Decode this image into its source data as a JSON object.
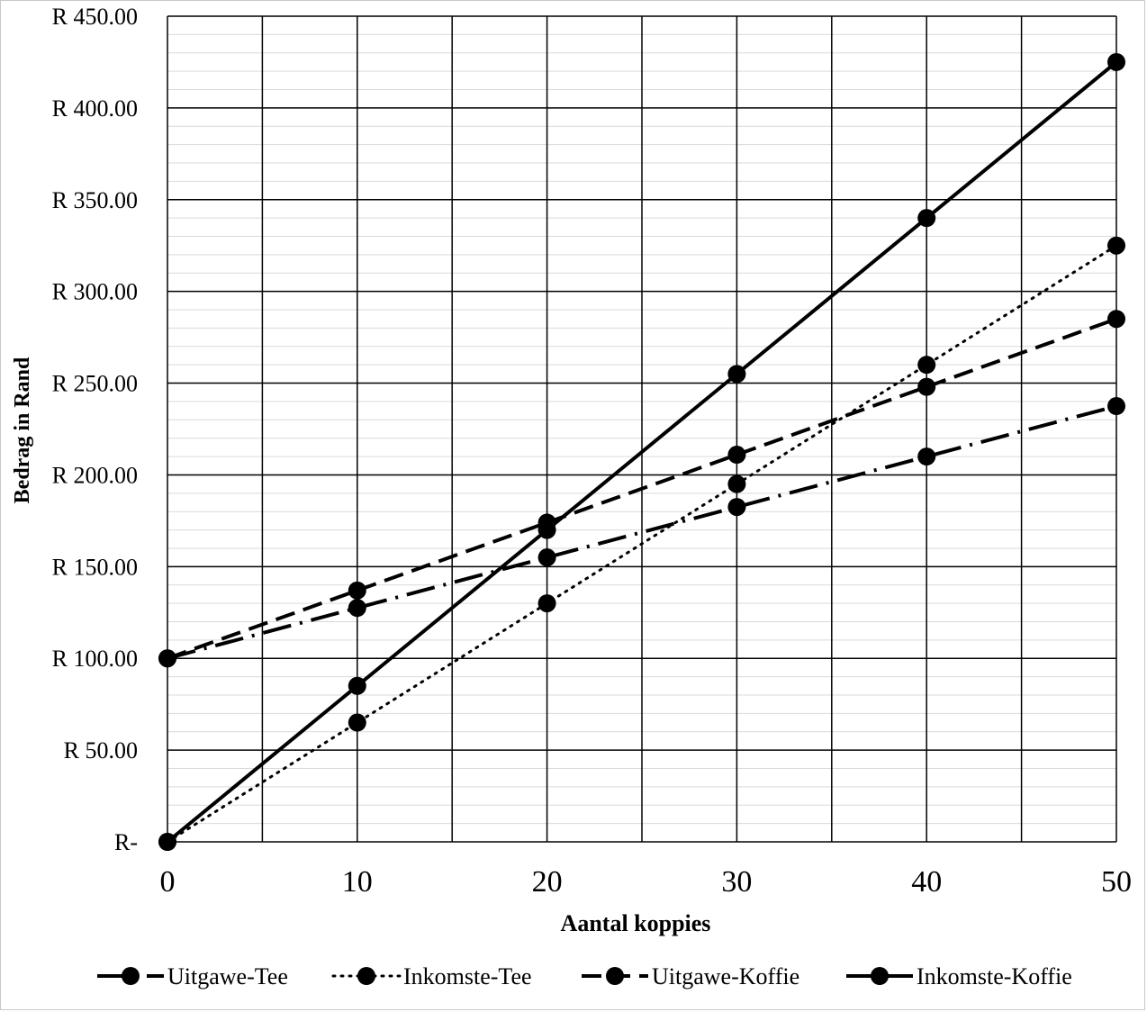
{
  "chart_data": {
    "type": "line",
    "title": "",
    "xlabel": "Aantal koppies",
    "ylabel": "Bedrag in Rand",
    "xlim": [
      0,
      50
    ],
    "ylim": [
      0,
      450
    ],
    "x_ticks": [
      0,
      10,
      20,
      30,
      40,
      50
    ],
    "x_tick_labels": [
      "0",
      "10",
      "20",
      "30",
      "40",
      "50"
    ],
    "y_ticks": [
      0,
      50,
      100,
      150,
      200,
      250,
      300,
      350,
      400,
      450
    ],
    "y_tick_labels": [
      "R-",
      "R 50.00",
      "R 100.00",
      "R 150.00",
      "R 200.00",
      "R 250.00",
      "R 300.00",
      "R 350.00",
      "R 400.00",
      "R 450.00"
    ],
    "major_grid": true,
    "minor_grid": true,
    "legend_position": "bottom",
    "x": [
      0,
      10,
      20,
      30,
      40,
      50
    ],
    "series": [
      {
        "name": "Uitgawe-Tee",
        "style": "long-dash-dot",
        "values": [
          100,
          127.5,
          155,
          182.5,
          210,
          237.5
        ]
      },
      {
        "name": "Inkomste-Tee",
        "style": "dotted",
        "values": [
          0,
          65,
          130,
          195,
          260,
          325
        ]
      },
      {
        "name": "Uitgawe-Koffie",
        "style": "dashed",
        "values": [
          100,
          137,
          174,
          211,
          248,
          285
        ]
      },
      {
        "name": "Inkomste-Koffie",
        "style": "solid",
        "values": [
          0,
          85,
          170,
          255,
          340,
          425
        ]
      }
    ],
    "colors": {
      "line": "#000000",
      "major_grid": "#000000",
      "minor_grid": "#d9d9d9"
    }
  }
}
